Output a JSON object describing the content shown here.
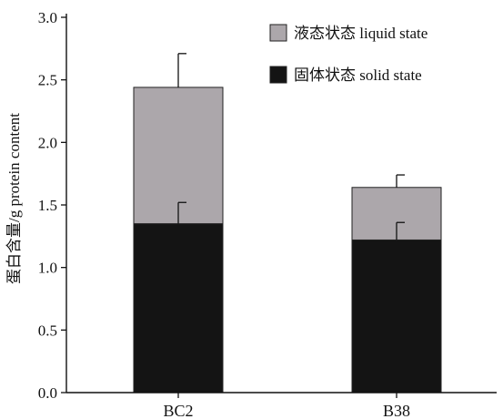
{
  "chart_data": {
    "type": "bar",
    "stacked": true,
    "categories": [
      "BC2",
      "B38"
    ],
    "series": [
      {
        "name": "固体状态 solid state",
        "values": [
          1.35,
          1.22
        ],
        "errors": [
          0.17,
          0.14
        ],
        "color": "#141414"
      },
      {
        "name": "液态状态 liquid state",
        "values": [
          1.09,
          0.42
        ],
        "errors": [
          0.27,
          0.1
        ],
        "color": "#aca7ab"
      }
    ],
    "ylabel": "蛋白含量/g protein content",
    "ylim": [
      0,
      3.0
    ],
    "yticks": [
      0.0,
      0.5,
      1.0,
      1.5,
      2.0,
      2.5,
      3.0
    ],
    "ytick_labels": [
      "0.0",
      "0.5",
      "1.0",
      "1.5",
      "2.0",
      "2.5",
      "3.0"
    ],
    "grid": false,
    "legend": {
      "position": "top-right",
      "entries": [
        "液态状态 liquid state",
        "固体状态 solid state"
      ]
    }
  }
}
